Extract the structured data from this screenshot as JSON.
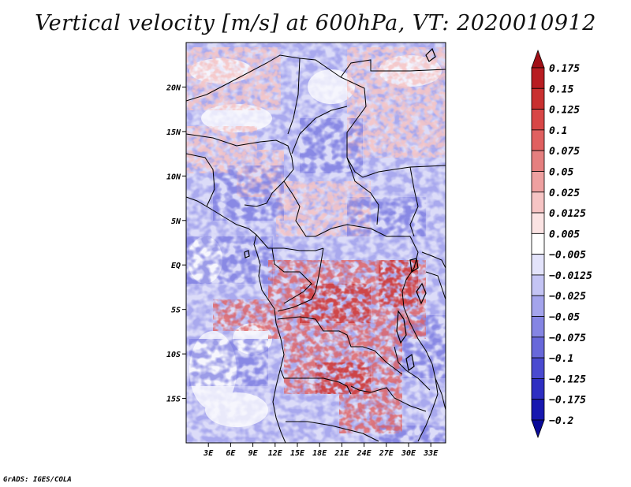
{
  "title": "Vertical velocity [m/s] at 600hPa, VT: 2020010912",
  "credit": "GrADS: IGES/COLA",
  "map": {
    "lon_range": [
      0,
      35
    ],
    "lat_range": [
      -20,
      25
    ],
    "lat_ticks": [
      {
        "lat": 20,
        "label": "20N"
      },
      {
        "lat": 15,
        "label": "15N"
      },
      {
        "lat": 10,
        "label": "10N"
      },
      {
        "lat": 5,
        "label": "5N"
      },
      {
        "lat": 0,
        "label": "EQ"
      },
      {
        "lat": -5,
        "label": "5S"
      },
      {
        "lat": -10,
        "label": "10S"
      },
      {
        "lat": -15,
        "label": "15S"
      }
    ],
    "lon_ticks": [
      {
        "lon": 3,
        "label": "3E"
      },
      {
        "lon": 6,
        "label": "6E"
      },
      {
        "lon": 9,
        "label": "9E"
      },
      {
        "lon": 12,
        "label": "12E"
      },
      {
        "lon": 15,
        "label": "15E"
      },
      {
        "lon": 18,
        "label": "18E"
      },
      {
        "lon": 21,
        "label": "21E"
      },
      {
        "lon": 24,
        "label": "24E"
      },
      {
        "lon": 27,
        "label": "27E"
      },
      {
        "lon": 30,
        "label": "30E"
      },
      {
        "lon": 33,
        "label": "33E"
      }
    ]
  },
  "colorbar": {
    "labels": [
      "0.175",
      "0.15",
      "0.125",
      "0.1",
      "0.075",
      "0.05",
      "0.025",
      "0.0125",
      "0.005",
      "−0.005",
      "−0.0125",
      "−0.025",
      "−0.05",
      "−0.075",
      "−0.1",
      "−0.125",
      "−0.175",
      "−0.2"
    ],
    "colors": [
      "#a00f16",
      "#b81d22",
      "#c93030",
      "#d84646",
      "#e06060",
      "#e57f7f",
      "#eea0a0",
      "#f6c4c4",
      "#fbe3e3",
      "#ffffff",
      "#e3e3fb",
      "#c4c4f4",
      "#a4a4ec",
      "#8585e3",
      "#6868da",
      "#4a4ad0",
      "#2e2ec2",
      "#1818b0",
      "#0a0a98"
    ]
  }
}
